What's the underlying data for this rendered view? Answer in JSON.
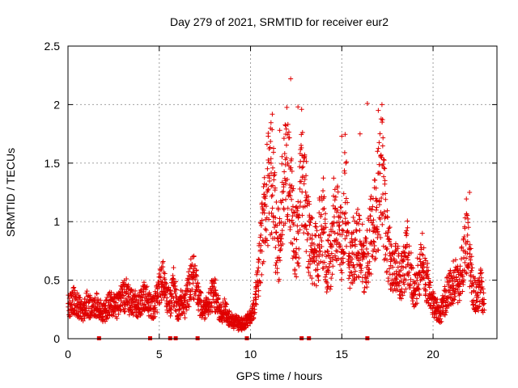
{
  "chart_data": {
    "type": "scatter",
    "title": "Day 279 of 2021, SRMTID for receiver eur2",
    "xlabel": "GPS time / hours",
    "ylabel": "SRMTID / TECUs",
    "xlim": [
      0,
      23.5
    ],
    "ylim": [
      0,
      2.5
    ],
    "xticks": [
      0,
      5,
      10,
      15,
      20
    ],
    "yticks": [
      0,
      0.5,
      1,
      1.5,
      2,
      2.5
    ],
    "ytick_labels": [
      "0",
      "0.5",
      "1",
      "1.5",
      "2",
      "2.5"
    ],
    "grid": true,
    "marker": "+",
    "color": "#e00000",
    "series": [
      {
        "name": "SRMTID",
        "x": [
          0.0,
          0.2,
          0.4,
          0.6,
          0.8,
          1.0,
          1.2,
          1.4,
          1.6,
          1.8,
          2.0,
          2.2,
          2.4,
          2.6,
          2.8,
          3.0,
          3.2,
          3.4,
          3.6,
          3.8,
          4.0,
          4.2,
          4.4,
          4.6,
          4.8,
          5.0,
          5.2,
          5.4,
          5.6,
          5.8,
          6.0,
          6.2,
          6.4,
          6.6,
          6.8,
          7.0,
          7.2,
          7.4,
          7.6,
          7.8,
          8.0,
          8.2,
          8.4,
          8.6,
          8.8,
          9.0,
          9.2,
          9.4,
          9.6,
          9.8,
          10.0,
          10.2,
          10.4,
          10.6,
          10.8,
          11.0,
          11.2,
          11.4,
          11.6,
          11.8,
          12.0,
          12.2,
          12.4,
          12.6,
          12.8,
          13.0,
          13.2,
          13.4,
          13.6,
          13.8,
          14.0,
          14.2,
          14.4,
          14.6,
          14.8,
          15.0,
          15.2,
          15.4,
          15.6,
          15.8,
          16.0,
          16.2,
          16.4,
          16.6,
          16.8,
          17.0,
          17.2,
          17.4,
          17.6,
          17.8,
          18.0,
          18.2,
          18.4,
          18.6,
          18.8,
          19.0,
          19.2,
          19.4,
          19.6,
          19.8,
          20.0,
          20.2,
          20.4,
          20.6,
          20.8,
          21.0,
          21.2,
          21.4,
          21.6,
          21.8,
          22.0,
          22.2,
          22.4,
          22.6,
          22.8
        ],
        "y": [
          0.25,
          0.35,
          0.3,
          0.28,
          0.22,
          0.3,
          0.27,
          0.24,
          0.3,
          0.25,
          0.22,
          0.28,
          0.3,
          0.26,
          0.3,
          0.35,
          0.38,
          0.3,
          0.32,
          0.28,
          0.3,
          0.38,
          0.32,
          0.25,
          0.3,
          0.42,
          0.5,
          0.35,
          0.3,
          0.45,
          0.25,
          0.3,
          0.28,
          0.4,
          0.55,
          0.5,
          0.3,
          0.28,
          0.25,
          0.35,
          0.4,
          0.3,
          0.2,
          0.25,
          0.18,
          0.15,
          0.14,
          0.12,
          0.14,
          0.15,
          0.18,
          0.25,
          0.45,
          0.8,
          1.2,
          1.3,
          1.4,
          0.9,
          0.75,
          1.35,
          1.5,
          1.2,
          0.9,
          0.8,
          1.45,
          1.2,
          0.85,
          0.75,
          0.7,
          0.9,
          1.0,
          0.6,
          0.7,
          1.1,
          0.9,
          0.8,
          1.3,
          0.6,
          0.75,
          0.8,
          0.85,
          0.6,
          0.7,
          0.9,
          1.0,
          1.2,
          1.45,
          0.9,
          0.7,
          0.55,
          0.65,
          0.5,
          0.6,
          0.75,
          0.5,
          0.4,
          0.55,
          0.7,
          0.5,
          0.45,
          0.3,
          0.25,
          0.2,
          0.3,
          0.4,
          0.45,
          0.5,
          0.45,
          0.6,
          0.9,
          0.7,
          0.4,
          0.35,
          0.45,
          0.3
        ],
        "outliers_x": [
          12.2,
          12.6,
          12.8,
          16.4,
          17.0,
          17.2,
          11.6,
          15.0,
          16.0,
          22.0
        ],
        "outliers_y": [
          2.22,
          1.98,
          1.96,
          2.01,
          1.95,
          2.0,
          1.78,
          1.73,
          1.75,
          1.25
        ]
      }
    ],
    "baseline_marks_x": [
      1.7,
      4.5,
      5.6,
      5.9,
      7.1,
      9.8,
      12.8,
      13.2,
      16.4
    ]
  }
}
